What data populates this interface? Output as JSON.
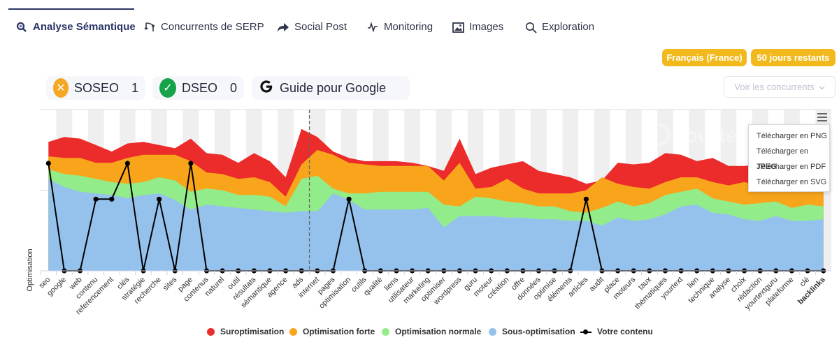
{
  "tabs": [
    {
      "label": "Analyse Sémantique",
      "icon": "search-icon",
      "active": true
    },
    {
      "label": "Concurrents de SERP",
      "icon": "compare-icon",
      "active": false
    },
    {
      "label": "Social Post",
      "icon": "share-icon",
      "active": false
    },
    {
      "label": "Monitoring",
      "icon": "pulse-icon",
      "active": false
    },
    {
      "label": "Images",
      "icon": "image-icon",
      "active": false
    },
    {
      "label": "Exploration",
      "icon": "search-icon",
      "active": false
    }
  ],
  "badges": {
    "language": "Français (France)",
    "days": "50 jours restants"
  },
  "scores": {
    "soseo": {
      "label": "SOSEO",
      "value": "1",
      "color": "#f5a623"
    },
    "dseo": {
      "label": "DSEO",
      "value": "0",
      "color": "#16a34a"
    },
    "google": {
      "label": "Guide pour Google"
    }
  },
  "competitors_select": {
    "label": "Voir les concurrents"
  },
  "export_menu": {
    "items": [
      "Télécharger en PNG",
      "Télécharger en JPEG",
      "Télécharger en PDF",
      "Télécharger en SVG"
    ]
  },
  "watermark": "Yourtext",
  "colors": {
    "suroptimisation": "#ec2b2b",
    "optimisation_forte": "#f8a51b",
    "optimisation_normale": "#93ec8a",
    "sous_optimisation": "#95c2ec",
    "votre_contenu": "#000000",
    "accent": "#2b3565",
    "badge": "#f2b91c"
  },
  "chart_data": {
    "type": "area",
    "ylabel": "Optimisation",
    "ylim": [
      0,
      100
    ],
    "grid": true,
    "legend_position": "bottom",
    "categories": [
      "seo",
      "google",
      "web",
      "contenu",
      "referencement",
      "clés",
      "stratégie",
      "recherche",
      "sites",
      "page",
      "contenus",
      "naturel",
      "outil",
      "résultats",
      "sémantique",
      "agence",
      "ads",
      "internet",
      "pages",
      "optimisation",
      "outils",
      "qualité",
      "liens",
      "utilisateur",
      "marketing",
      "optimiser",
      "wordpress",
      "guru",
      "moteur",
      "création",
      "offre",
      "données",
      "optimise",
      "éléments",
      "articles",
      "audit",
      "place",
      "moteurs",
      "taux",
      "thématiques",
      "yourtext",
      "lien",
      "technique",
      "analyse",
      "choix",
      "rédaction",
      "yourtextguru",
      "plateforme",
      "clé",
      "backlinks"
    ],
    "bold_category": "backlinks",
    "reference_line_after": "ads",
    "series": [
      {
        "name": "Sous-optimisation",
        "values": [
          57,
          52,
          49,
          48,
          47,
          45,
          47,
          48,
          44,
          38,
          41,
          40,
          39,
          38,
          37,
          36,
          37,
          37,
          48,
          44,
          38,
          38,
          38,
          38,
          39,
          27,
          34,
          34,
          34,
          33,
          33,
          32,
          32,
          31,
          31,
          28,
          33,
          31,
          32,
          35,
          40,
          41,
          36,
          35,
          32,
          31,
          34,
          31,
          31,
          32
        ]
      },
      {
        "name": "Optimisation normale",
        "values": [
          63,
          60,
          59,
          57,
          55,
          54,
          55,
          58,
          56,
          49,
          51,
          50,
          47,
          47,
          46,
          40,
          57,
          59,
          51,
          48,
          48,
          49,
          49,
          49,
          49,
          41,
          40,
          46,
          45,
          43,
          42,
          40,
          40,
          37,
          36,
          39,
          43,
          40,
          42,
          47,
          49,
          51,
          45,
          43,
          41,
          42,
          43,
          39,
          41,
          40
        ]
      },
      {
        "name": "Optimisation forte",
        "values": [
          71,
          70,
          70,
          67,
          67,
          70,
          72,
          72,
          72,
          68,
          61,
          60,
          57,
          58,
          55,
          46,
          66,
          75,
          72,
          67,
          66,
          65,
          65,
          65,
          65,
          56,
          67,
          51,
          52,
          57,
          51,
          48,
          48,
          48,
          50,
          58,
          54,
          52,
          51,
          55,
          58,
          58,
          55,
          53,
          55,
          53,
          55,
          51,
          49,
          52
        ]
      },
      {
        "name": "Suroptimisation",
        "values": [
          80,
          83,
          82,
          78,
          74,
          79,
          80,
          78,
          76,
          82,
          73,
          72,
          67,
          73,
          68,
          58,
          88,
          83,
          74,
          70,
          68,
          68,
          68,
          67,
          65,
          62,
          82,
          60,
          64,
          66,
          68,
          62,
          60,
          58,
          54,
          56,
          67,
          66,
          67,
          73,
          72,
          68,
          70,
          65,
          65,
          66,
          61,
          64,
          59,
          58
        ]
      }
    ],
    "content_series": {
      "name": "Votre contenu",
      "values": [
        3,
        0,
        0,
        2,
        2,
        3,
        0,
        2,
        0,
        3,
        0,
        0,
        0,
        0,
        0,
        0,
        0,
        0,
        0,
        2,
        0,
        0,
        0,
        0,
        0,
        0,
        0,
        0,
        0,
        0,
        0,
        0,
        0,
        0,
        2,
        0,
        0,
        0,
        0,
        0,
        0,
        0,
        0,
        0,
        0,
        0,
        0,
        0,
        0,
        0
      ],
      "ylim": [
        0,
        4.5
      ]
    },
    "legend": [
      "Suroptimisation",
      "Optimisation forte",
      "Optimisation normale",
      "Sous-optimisation",
      "Votre contenu"
    ]
  }
}
